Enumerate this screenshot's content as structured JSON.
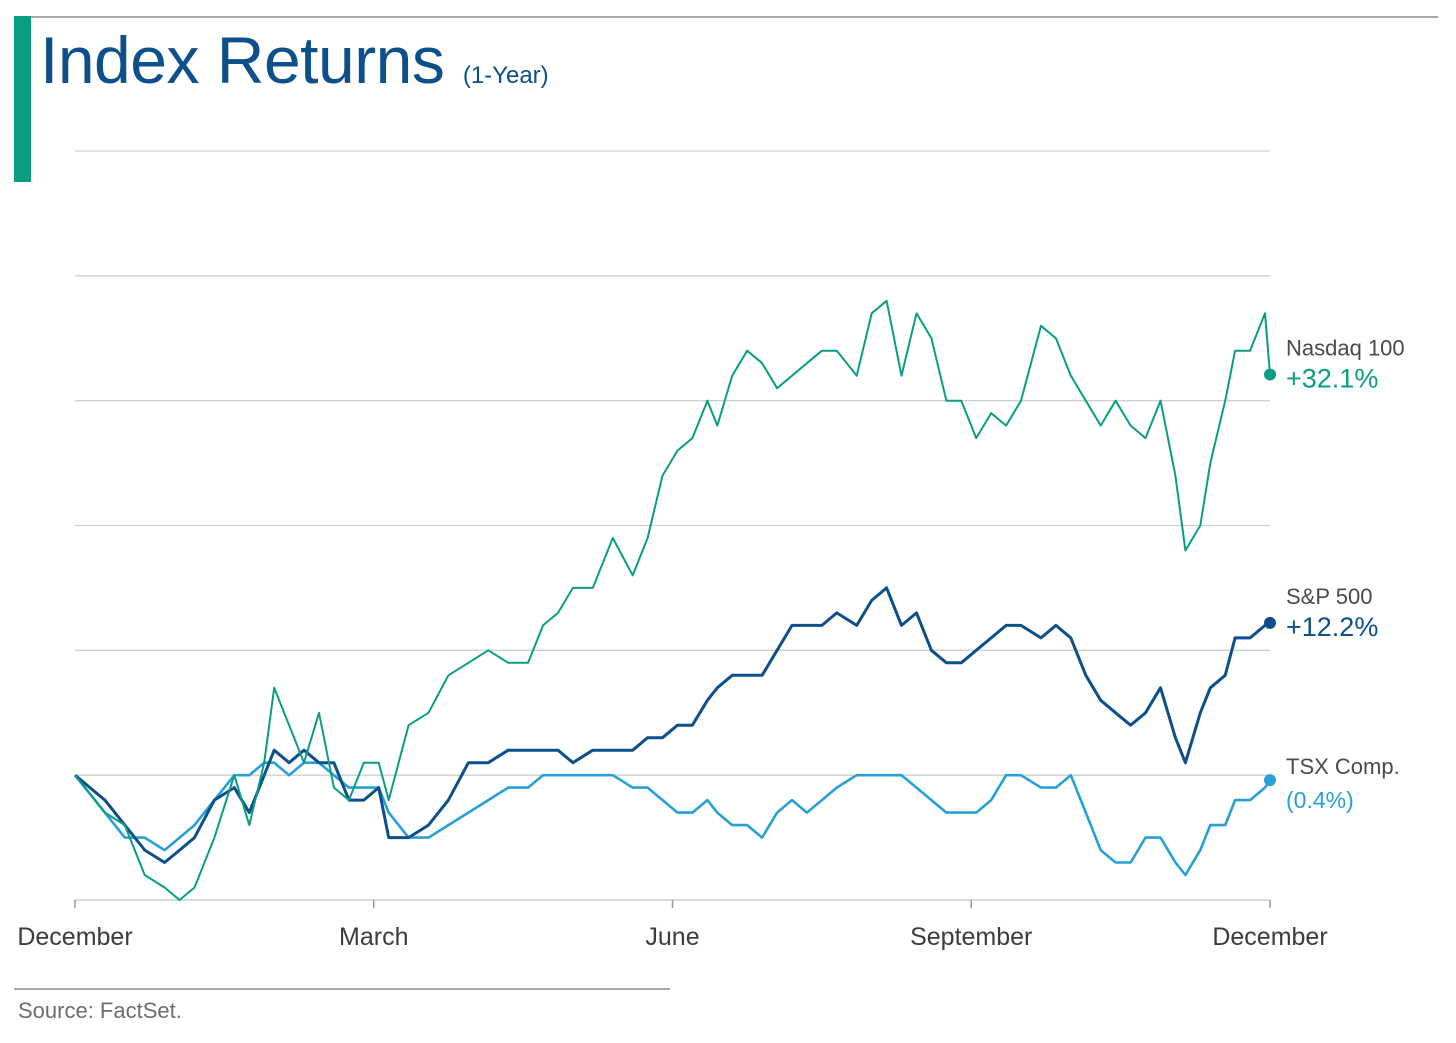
{
  "header": {
    "title": "Index Returns",
    "subtitle": "(1-Year)"
  },
  "footer": {
    "source": "Source: FactSet."
  },
  "colors": {
    "accent": "#0a9e80",
    "title": "#0c4f8a",
    "nasdaq": "#0a9e80",
    "sp500": "#0c4f8a",
    "tsx": "#27a0d8",
    "grid": "#cfcfcf",
    "axis_text": "#3c3c3c"
  },
  "chart_data": {
    "type": "line",
    "title": "Index Returns",
    "subtitle": "(1-Year)",
    "x_labels": [
      "December",
      "March",
      "June",
      "September",
      "December"
    ],
    "x_label_positions": [
      0,
      3,
      6,
      9,
      12
    ],
    "xlim": [
      0,
      12
    ],
    "ylim": [
      -10,
      50
    ],
    "grid": true,
    "gridlines_y": [
      0,
      10,
      20,
      30,
      40,
      50
    ],
    "y_axis_labels": false,
    "series": [
      {
        "name": "Nasdaq 100",
        "end_label": "+32.1%",
        "end_value": 32.1,
        "points": [
          [
            0,
            0
          ],
          [
            0.3,
            -3
          ],
          [
            0.5,
            -4
          ],
          [
            0.7,
            -8
          ],
          [
            0.9,
            -9
          ],
          [
            1.05,
            -10
          ],
          [
            1.2,
            -9
          ],
          [
            1.4,
            -5
          ],
          [
            1.6,
            0
          ],
          [
            1.75,
            -4
          ],
          [
            1.9,
            1
          ],
          [
            2.0,
            7
          ],
          [
            2.15,
            4
          ],
          [
            2.3,
            1
          ],
          [
            2.45,
            5
          ],
          [
            2.6,
            -1
          ],
          [
            2.75,
            -2
          ],
          [
            2.9,
            1
          ],
          [
            3.05,
            1
          ],
          [
            3.15,
            -2
          ],
          [
            3.35,
            4
          ],
          [
            3.55,
            5
          ],
          [
            3.75,
            8
          ],
          [
            3.95,
            9
          ],
          [
            4.15,
            10
          ],
          [
            4.35,
            9
          ],
          [
            4.55,
            9
          ],
          [
            4.7,
            12
          ],
          [
            4.85,
            13
          ],
          [
            5.0,
            15
          ],
          [
            5.2,
            15
          ],
          [
            5.4,
            19
          ],
          [
            5.6,
            16
          ],
          [
            5.75,
            19
          ],
          [
            5.9,
            24
          ],
          [
            6.05,
            26
          ],
          [
            6.2,
            27
          ],
          [
            6.35,
            30
          ],
          [
            6.45,
            28
          ],
          [
            6.6,
            32
          ],
          [
            6.75,
            34
          ],
          [
            6.9,
            33
          ],
          [
            7.05,
            31
          ],
          [
            7.2,
            32
          ],
          [
            7.35,
            33
          ],
          [
            7.5,
            34
          ],
          [
            7.65,
            34
          ],
          [
            7.85,
            32
          ],
          [
            8.0,
            37
          ],
          [
            8.15,
            38
          ],
          [
            8.3,
            32
          ],
          [
            8.45,
            37
          ],
          [
            8.6,
            35
          ],
          [
            8.75,
            30
          ],
          [
            8.9,
            30
          ],
          [
            9.05,
            27
          ],
          [
            9.2,
            29
          ],
          [
            9.35,
            28
          ],
          [
            9.5,
            30
          ],
          [
            9.7,
            36
          ],
          [
            9.85,
            35
          ],
          [
            10.0,
            32
          ],
          [
            10.15,
            30
          ],
          [
            10.3,
            28
          ],
          [
            10.45,
            30
          ],
          [
            10.6,
            28
          ],
          [
            10.75,
            27
          ],
          [
            10.9,
            30
          ],
          [
            11.05,
            24
          ],
          [
            11.15,
            18
          ],
          [
            11.3,
            20
          ],
          [
            11.4,
            25
          ],
          [
            11.55,
            30
          ],
          [
            11.65,
            34
          ],
          [
            11.8,
            34
          ],
          [
            11.95,
            37
          ],
          [
            12.0,
            32.1
          ]
        ]
      },
      {
        "name": "S&P 500",
        "end_label": "+12.2%",
        "end_value": 12.2,
        "points": [
          [
            0,
            0
          ],
          [
            0.3,
            -2
          ],
          [
            0.5,
            -4
          ],
          [
            0.7,
            -6
          ],
          [
            0.9,
            -7
          ],
          [
            1.05,
            -6
          ],
          [
            1.2,
            -5
          ],
          [
            1.4,
            -2
          ],
          [
            1.6,
            -1
          ],
          [
            1.75,
            -3
          ],
          [
            1.9,
            0
          ],
          [
            2.0,
            2
          ],
          [
            2.15,
            1
          ],
          [
            2.3,
            2
          ],
          [
            2.45,
            1
          ],
          [
            2.6,
            1
          ],
          [
            2.75,
            -2
          ],
          [
            2.9,
            -2
          ],
          [
            3.05,
            -1
          ],
          [
            3.15,
            -5
          ],
          [
            3.35,
            -5
          ],
          [
            3.55,
            -4
          ],
          [
            3.75,
            -2
          ],
          [
            3.95,
            1
          ],
          [
            4.15,
            1
          ],
          [
            4.35,
            2
          ],
          [
            4.55,
            2
          ],
          [
            4.7,
            2
          ],
          [
            4.85,
            2
          ],
          [
            5.0,
            1
          ],
          [
            5.2,
            2
          ],
          [
            5.4,
            2
          ],
          [
            5.6,
            2
          ],
          [
            5.75,
            3
          ],
          [
            5.9,
            3
          ],
          [
            6.05,
            4
          ],
          [
            6.2,
            4
          ],
          [
            6.35,
            6
          ],
          [
            6.45,
            7
          ],
          [
            6.6,
            8
          ],
          [
            6.75,
            8
          ],
          [
            6.9,
            8
          ],
          [
            7.05,
            10
          ],
          [
            7.2,
            12
          ],
          [
            7.35,
            12
          ],
          [
            7.5,
            12
          ],
          [
            7.65,
            13
          ],
          [
            7.85,
            12
          ],
          [
            8.0,
            14
          ],
          [
            8.15,
            15
          ],
          [
            8.3,
            12
          ],
          [
            8.45,
            13
          ],
          [
            8.6,
            10
          ],
          [
            8.75,
            9
          ],
          [
            8.9,
            9
          ],
          [
            9.05,
            10
          ],
          [
            9.2,
            11
          ],
          [
            9.35,
            12
          ],
          [
            9.5,
            12
          ],
          [
            9.7,
            11
          ],
          [
            9.85,
            12
          ],
          [
            10.0,
            11
          ],
          [
            10.15,
            8
          ],
          [
            10.3,
            6
          ],
          [
            10.45,
            5
          ],
          [
            10.6,
            4
          ],
          [
            10.75,
            5
          ],
          [
            10.9,
            7
          ],
          [
            11.05,
            3
          ],
          [
            11.15,
            1
          ],
          [
            11.3,
            5
          ],
          [
            11.4,
            7
          ],
          [
            11.55,
            8
          ],
          [
            11.65,
            11
          ],
          [
            11.8,
            11
          ],
          [
            11.95,
            12
          ],
          [
            12.0,
            12.2
          ]
        ]
      },
      {
        "name": "TSX Comp.",
        "end_label": "(0.4%)",
        "end_value": -0.4,
        "points": [
          [
            0,
            0
          ],
          [
            0.3,
            -3
          ],
          [
            0.5,
            -5
          ],
          [
            0.7,
            -5
          ],
          [
            0.9,
            -6
          ],
          [
            1.05,
            -5
          ],
          [
            1.2,
            -4
          ],
          [
            1.4,
            -2
          ],
          [
            1.6,
            0
          ],
          [
            1.75,
            0
          ],
          [
            1.9,
            1
          ],
          [
            2.0,
            1
          ],
          [
            2.15,
            0
          ],
          [
            2.3,
            1
          ],
          [
            2.45,
            1
          ],
          [
            2.6,
            0
          ],
          [
            2.75,
            -1
          ],
          [
            2.9,
            -1
          ],
          [
            3.05,
            -1
          ],
          [
            3.15,
            -3
          ],
          [
            3.35,
            -5
          ],
          [
            3.55,
            -5
          ],
          [
            3.75,
            -4
          ],
          [
            3.95,
            -3
          ],
          [
            4.15,
            -2
          ],
          [
            4.35,
            -1
          ],
          [
            4.55,
            -1
          ],
          [
            4.7,
            0
          ],
          [
            4.85,
            0
          ],
          [
            5.0,
            0
          ],
          [
            5.2,
            0
          ],
          [
            5.4,
            0
          ],
          [
            5.6,
            -1
          ],
          [
            5.75,
            -1
          ],
          [
            5.9,
            -2
          ],
          [
            6.05,
            -3
          ],
          [
            6.2,
            -3
          ],
          [
            6.35,
            -2
          ],
          [
            6.45,
            -3
          ],
          [
            6.6,
            -4
          ],
          [
            6.75,
            -4
          ],
          [
            6.9,
            -5
          ],
          [
            7.05,
            -3
          ],
          [
            7.2,
            -2
          ],
          [
            7.35,
            -3
          ],
          [
            7.5,
            -2
          ],
          [
            7.65,
            -1
          ],
          [
            7.85,
            0
          ],
          [
            8.0,
            0
          ],
          [
            8.15,
            0
          ],
          [
            8.3,
            0
          ],
          [
            8.45,
            -1
          ],
          [
            8.6,
            -2
          ],
          [
            8.75,
            -3
          ],
          [
            8.9,
            -3
          ],
          [
            9.05,
            -3
          ],
          [
            9.2,
            -2
          ],
          [
            9.35,
            0
          ],
          [
            9.5,
            0
          ],
          [
            9.7,
            -1
          ],
          [
            9.85,
            -1
          ],
          [
            10.0,
            0
          ],
          [
            10.15,
            -3
          ],
          [
            10.3,
            -6
          ],
          [
            10.45,
            -7
          ],
          [
            10.6,
            -7
          ],
          [
            10.75,
            -5
          ],
          [
            10.9,
            -5
          ],
          [
            11.05,
            -7
          ],
          [
            11.15,
            -8
          ],
          [
            11.3,
            -6
          ],
          [
            11.4,
            -4
          ],
          [
            11.55,
            -4
          ],
          [
            11.65,
            -2
          ],
          [
            11.8,
            -2
          ],
          [
            11.95,
            -1
          ],
          [
            12.0,
            -0.4
          ]
        ]
      }
    ]
  }
}
